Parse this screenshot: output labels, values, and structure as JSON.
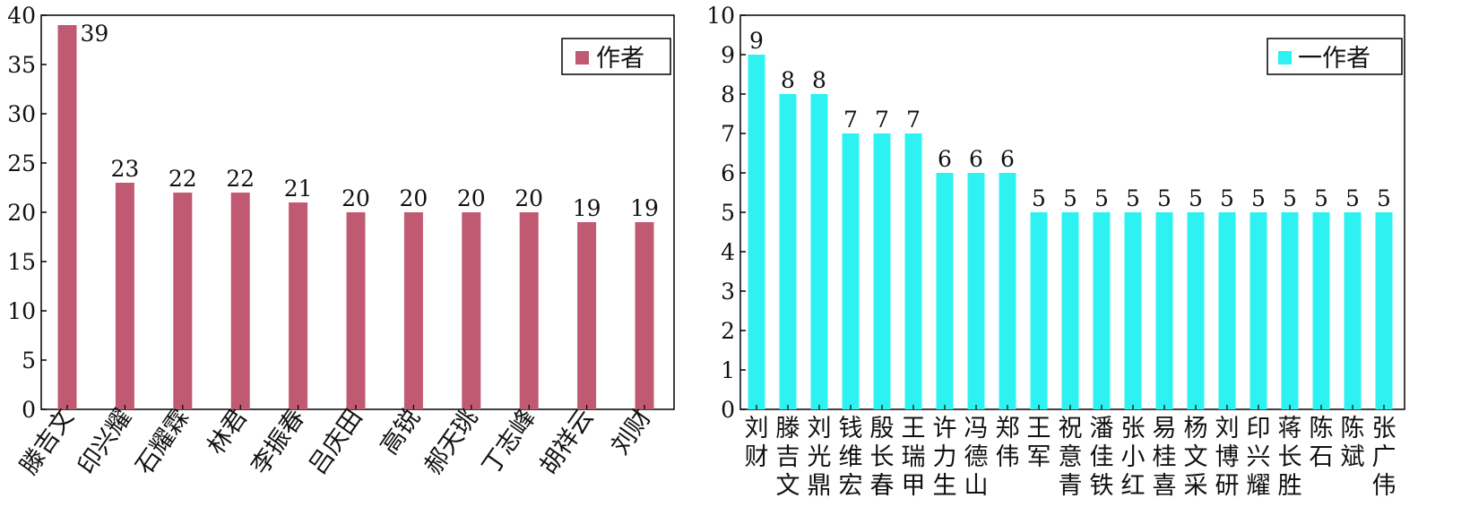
{
  "chart_data": [
    {
      "type": "bar",
      "legend": "作者",
      "legend_position": "top-right",
      "color": "#c05a72",
      "ylim": [
        0,
        40
      ],
      "yticks": [
        0,
        5,
        10,
        15,
        20,
        25,
        30,
        35,
        40
      ],
      "xlabel_rotation": "rotated",
      "categories": [
        "滕吉文",
        "印兴耀",
        "石耀霖",
        "林君",
        "李振春",
        "吕庆田",
        "高锐",
        "郝天珧",
        "丁志峰",
        "胡祥云",
        "刘财"
      ],
      "values": [
        39,
        23,
        22,
        22,
        21,
        20,
        20,
        20,
        20,
        19,
        19
      ],
      "data_labels": [
        "39",
        "23",
        "22",
        "22",
        "21",
        "20",
        "20",
        "20",
        "20",
        "19",
        "19"
      ]
    },
    {
      "type": "bar",
      "legend": "一作者",
      "legend_position": "top-right",
      "color": "#2ef2f2",
      "ylim": [
        0,
        10
      ],
      "yticks": [
        0,
        1,
        2,
        3,
        4,
        5,
        6,
        7,
        8,
        9,
        10
      ],
      "xlabel_rotation": "vertical",
      "categories": [
        "刘财",
        "滕吉文",
        "刘光鼎",
        "钱维宏",
        "殷长春",
        "王瑞甲",
        "许力生",
        "冯德山",
        "郑伟",
        "王军",
        "祝意青",
        "潘佳铁",
        "张小红",
        "易桂喜",
        "杨文采",
        "刘博研",
        "印兴耀",
        "蒋长胜",
        "陈石",
        "陈斌",
        "张广伟"
      ],
      "values": [
        9,
        8,
        8,
        7,
        7,
        7,
        6,
        6,
        6,
        5,
        5,
        5,
        5,
        5,
        5,
        5,
        5,
        5,
        5,
        5,
        5
      ],
      "data_labels": [
        "9",
        "8",
        "8",
        "7",
        "7",
        "7",
        "6",
        "6",
        "6",
        "5",
        "5",
        "5",
        "5",
        "5",
        "5",
        "5",
        "5",
        "5",
        "5",
        "5",
        "5"
      ]
    }
  ]
}
